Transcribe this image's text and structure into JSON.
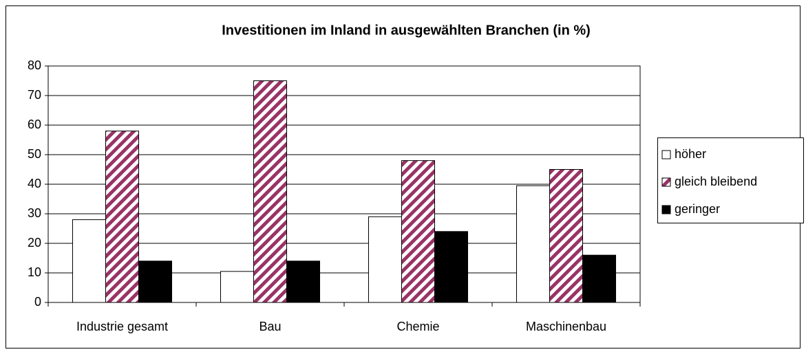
{
  "chart_data": {
    "type": "bar",
    "title": "Investitionen im Inland in ausgewählten Branchen (in %)",
    "categories": [
      "Industrie gesamt",
      "Bau",
      "Chemie",
      "Maschinenbau"
    ],
    "series": [
      {
        "name": "höher",
        "color": "#ffffff",
        "pattern": "solid",
        "values": [
          28,
          10.5,
          29,
          39.5
        ]
      },
      {
        "name": "gleich bleibend",
        "color": "#993366",
        "pattern": "hatch",
        "values": [
          58,
          75,
          48,
          45
        ]
      },
      {
        "name": "geringer",
        "color": "#000000",
        "pattern": "solid",
        "values": [
          14,
          14,
          24,
          16
        ]
      }
    ],
    "ylim": [
      0,
      80
    ],
    "yticks": [
      0,
      10,
      20,
      30,
      40,
      50,
      60,
      70,
      80
    ],
    "grid": true,
    "legend": "right"
  }
}
